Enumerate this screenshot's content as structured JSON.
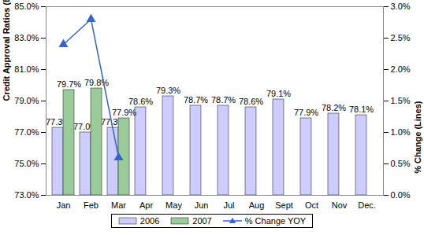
{
  "chart_data": {
    "type": "bar",
    "categories": [
      "Jan",
      "Feb",
      "Mar",
      "Apr",
      "May",
      "Jun",
      "Jul",
      "Aug",
      "Sept",
      "Oct",
      "Nov",
      "Dec."
    ],
    "y_label": "Credit Approval Ratios (Bars)",
    "y2_label": "% Change (Lines)",
    "ylim": [
      73,
      85
    ],
    "yticks": [
      {
        "value": 73,
        "label": "73.0%"
      },
      {
        "value": 75,
        "label": "75.0%"
      },
      {
        "value": 77,
        "label": "77.0%"
      },
      {
        "value": 79,
        "label": "79.0%"
      },
      {
        "value": 81,
        "label": "81.0%"
      },
      {
        "value": 83,
        "label": "83.0%"
      },
      {
        "value": 85,
        "label": "85.0%"
      }
    ],
    "y2lim": [
      0,
      3
    ],
    "y2ticks": [
      {
        "value": 0,
        "label": "0.0%"
      },
      {
        "value": 0.5,
        "label": "0.5%"
      },
      {
        "value": 1,
        "label": "1.0%"
      },
      {
        "value": 1.5,
        "label": "1.5%"
      },
      {
        "value": 2,
        "label": "2.0%"
      },
      {
        "value": 2.5,
        "label": "2.5%"
      },
      {
        "value": 3,
        "label": "3.0%"
      }
    ],
    "data_labels": true,
    "legend": "bottom",
    "series": [
      {
        "name": "2006",
        "color": "#ccccff",
        "values": [
          77.3,
          77.0,
          77.3,
          78.6,
          79.3,
          78.7,
          78.7,
          78.6,
          79.1,
          77.9,
          78.2,
          78.1
        ],
        "value_labels": [
          "77.3%",
          "77.0%",
          "77.3%",
          "78.6%",
          "79.3%",
          "78.7%",
          "78.7%",
          "78.6%",
          "79.1%",
          "77.9%",
          "78.2%",
          "78.1%"
        ]
      },
      {
        "name": "2007",
        "color": "#99cc99",
        "values": [
          79.7,
          79.8,
          77.9,
          null,
          null,
          null,
          null,
          null,
          null,
          null,
          null,
          null
        ],
        "value_labels": [
          "79.7%",
          "79.8%",
          "77.9%",
          null,
          null,
          null,
          null,
          null,
          null,
          null,
          null,
          null
        ]
      },
      {
        "name": "% Change YOY",
        "type": "line",
        "axis": "y2",
        "color": "#3366cc",
        "marker": "triangle",
        "values": [
          2.4,
          2.8,
          0.6,
          null,
          null,
          null,
          null,
          null,
          null,
          null,
          null,
          null
        ]
      }
    ]
  }
}
